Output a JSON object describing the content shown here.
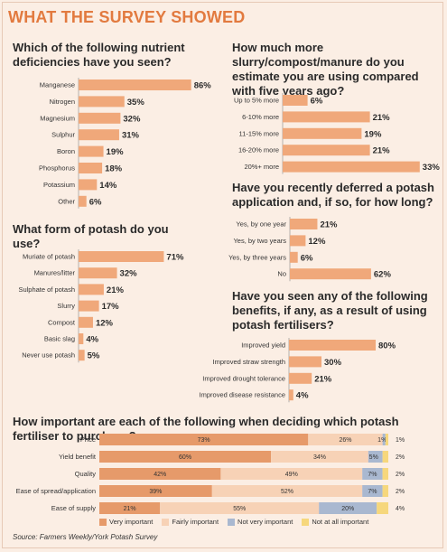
{
  "page_title": "WHAT THE SURVEY SHOWED",
  "source": "Source: Farmers Weekly/York Potash Survey",
  "colors": {
    "bar": "#f0a87a",
    "very": "#e69a6a",
    "fairly": "#f7d2b6",
    "not_very": "#a9b8d0",
    "not_at_all": "#f6d77c"
  },
  "chart_data": [
    {
      "type": "bar",
      "title": "Which of the following nutrient deficiencies have you seen?",
      "categories": [
        "Manganese",
        "Nitrogen",
        "Magnesium",
        "Sulphur",
        "Boron",
        "Phosphorus",
        "Potassium",
        "Other"
      ],
      "values": [
        86,
        35,
        32,
        31,
        19,
        18,
        14,
        6
      ],
      "labels": [
        "86%",
        "35%",
        "32%",
        "31%",
        "19%",
        "18%",
        "14%",
        "6%"
      ],
      "orientation": "horizontal"
    },
    {
      "type": "bar",
      "title": "What form of potash do you use?",
      "categories": [
        "Muriate of potash",
        "Manures/litter",
        "Sulphate of potash",
        "Slurry",
        "Compost",
        "Basic slag",
        "Never use potash"
      ],
      "values": [
        71,
        32,
        21,
        17,
        12,
        4,
        5
      ],
      "labels": [
        "71%",
        "32%",
        "21%",
        "17%",
        "12%",
        "4%",
        "5%"
      ],
      "orientation": "horizontal"
    },
    {
      "type": "bar",
      "title": "How much more slurry/compost/manure do you estimate you are using compared with five years ago?",
      "categories": [
        "Up to 5% more",
        "6-10% more",
        "11-15% more",
        "16-20% more",
        "20%+ more"
      ],
      "values": [
        6,
        21,
        19,
        21,
        33
      ],
      "labels": [
        "6%",
        "21%",
        "19%",
        "21%",
        "33%"
      ],
      "orientation": "horizontal"
    },
    {
      "type": "bar",
      "title": "Have you recently deferred a potash application and, if so, for how long?",
      "categories": [
        "Yes, by one year",
        "Yes, by two years",
        "Yes, by three years",
        "No"
      ],
      "values": [
        21,
        12,
        6,
        62
      ],
      "labels": [
        "21%",
        "12%",
        "6%",
        "62%"
      ],
      "orientation": "horizontal"
    },
    {
      "type": "bar",
      "title": "Have you seen any of the following benefits, if any, as a result of using potash fertilisers?",
      "categories": [
        "Improved yield",
        "Improved straw strength",
        "Improved drought tolerance",
        "Improved disease resistance"
      ],
      "values": [
        80,
        30,
        21,
        4
      ],
      "labels": [
        "80%",
        "30%",
        "21%",
        "4%"
      ],
      "orientation": "horizontal"
    },
    {
      "type": "bar",
      "stacked": true,
      "title": "How important are each of the following when deciding which potash fertiliser to purchase?",
      "categories": [
        "Price",
        "Yield benefit",
        "Quality",
        "Ease of spread/application",
        "Ease of supply"
      ],
      "series": [
        {
          "name": "Very important",
          "values": [
            73,
            60,
            42,
            39,
            21
          ],
          "labels": [
            "73%",
            "60%",
            "42%",
            "39%",
            "21%"
          ]
        },
        {
          "name": "Fairly important",
          "values": [
            26,
            34,
            49,
            52,
            55
          ],
          "labels": [
            "26%",
            "34%",
            "49%",
            "52%",
            "55%"
          ]
        },
        {
          "name": "Not very important",
          "values": [
            1,
            5,
            7,
            7,
            20
          ],
          "labels": [
            "1%",
            "5%",
            "7%",
            "7%",
            "20%"
          ]
        },
        {
          "name": "Not at all important",
          "values": [
            1,
            2,
            2,
            2,
            4
          ],
          "labels": [
            "1%",
            "2%",
            "2%",
            "2%",
            "4%"
          ]
        }
      ],
      "legend_position": "bottom"
    }
  ]
}
